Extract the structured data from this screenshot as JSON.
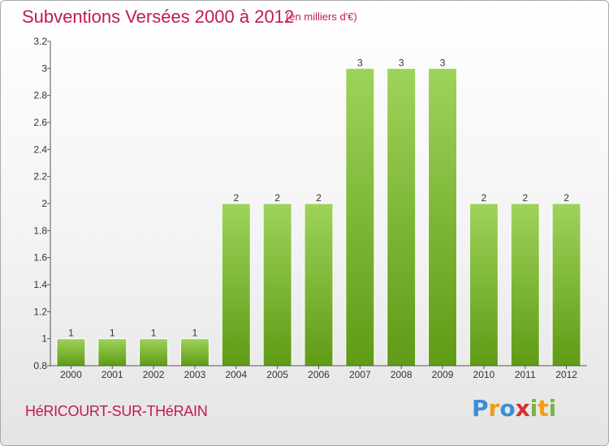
{
  "header": {
    "title": "Subventions Versées 2000 à 2012",
    "subtitle": "(en milliers d'€)"
  },
  "footer": {
    "commune": "HéRICOURT-SUR-THéRAIN",
    "brand_letters": [
      "P",
      "r",
      "o",
      "x",
      "i",
      "t",
      "i"
    ],
    "brand_colors": [
      "#3a8fd6",
      "#f39c12",
      "#3a8fd6",
      "#d63030",
      "#7cb342",
      "#f39c12",
      "#7cb342"
    ]
  },
  "chart_data": {
    "type": "bar",
    "title": "Subventions Versées 2000 à 2012",
    "subtitle": "(en milliers d'€)",
    "categories": [
      "2000",
      "2001",
      "2002",
      "2003",
      "2004",
      "2005",
      "2006",
      "2007",
      "2008",
      "2009",
      "2010",
      "2011",
      "2012"
    ],
    "values": [
      1,
      1,
      1,
      1,
      2,
      2,
      2,
      3,
      3,
      3,
      2,
      2,
      2
    ],
    "data_labels": [
      "1",
      "1",
      "1",
      "1",
      "2",
      "2",
      "2",
      "3",
      "3",
      "3",
      "2",
      "2",
      "2"
    ],
    "ylim": [
      0.8,
      3.2
    ],
    "yticks": [
      "0.8",
      "1",
      "1.2",
      "1.4",
      "1.6",
      "1.8",
      "2",
      "2.2",
      "2.4",
      "2.6",
      "2.8",
      "3",
      "3.2"
    ],
    "xlabel": "",
    "ylabel": "",
    "grid": false,
    "colors": {
      "bar_top": "#9ed35a",
      "bar_bottom": "#5f9b16",
      "axis": "#555555"
    }
  }
}
